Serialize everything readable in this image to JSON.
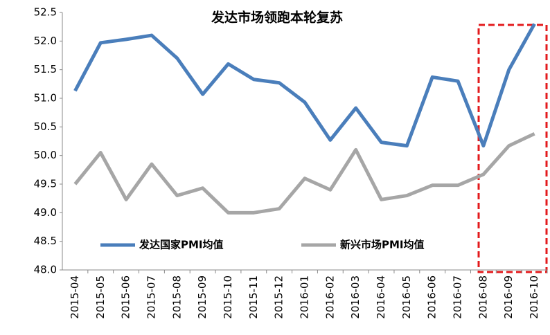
{
  "chart_data": {
    "type": "line",
    "title": "发达市场领跑本轮复苏",
    "categories": [
      "2015-04",
      "2015-05",
      "2015-06",
      "2015-07",
      "2015-08",
      "2015-09",
      "2015-10",
      "2015-11",
      "2015-12",
      "2016-01",
      "2016-02",
      "2016-03",
      "2016-04",
      "2016-05",
      "2016-06",
      "2016-07",
      "2016-08",
      "2016-09",
      "2016-10"
    ],
    "series": [
      {
        "name": "发达国家PMI均值",
        "color": "#4a7ebb",
        "values": [
          51.13,
          51.97,
          52.03,
          52.1,
          51.7,
          51.07,
          51.6,
          51.33,
          51.27,
          50.93,
          50.27,
          50.83,
          50.23,
          50.17,
          51.37,
          51.3,
          50.17,
          51.5,
          52.3
        ]
      },
      {
        "name": "新兴市场PMI均值",
        "color": "#a6a6a6",
        "values": [
          49.5,
          50.05,
          49.23,
          49.85,
          49.3,
          49.43,
          49.0,
          49.0,
          49.07,
          49.6,
          49.4,
          50.1,
          49.23,
          49.3,
          49.48,
          49.48,
          49.67,
          50.17,
          50.38
        ]
      }
    ],
    "ylim": [
      48.0,
      52.5
    ],
    "yticks": [
      {
        "value": 48.0,
        "label": "48.0"
      },
      48.5,
      {
        "value": 49.0,
        "label": "49.0"
      },
      49.5,
      {
        "value": 50.0,
        "label": "50.0"
      },
      50.5,
      {
        "value": 51.0,
        "label": "51.0"
      },
      51.5,
      {
        "value": 52.0,
        "label": "52.0"
      },
      52.5
    ],
    "grid": false
  }
}
